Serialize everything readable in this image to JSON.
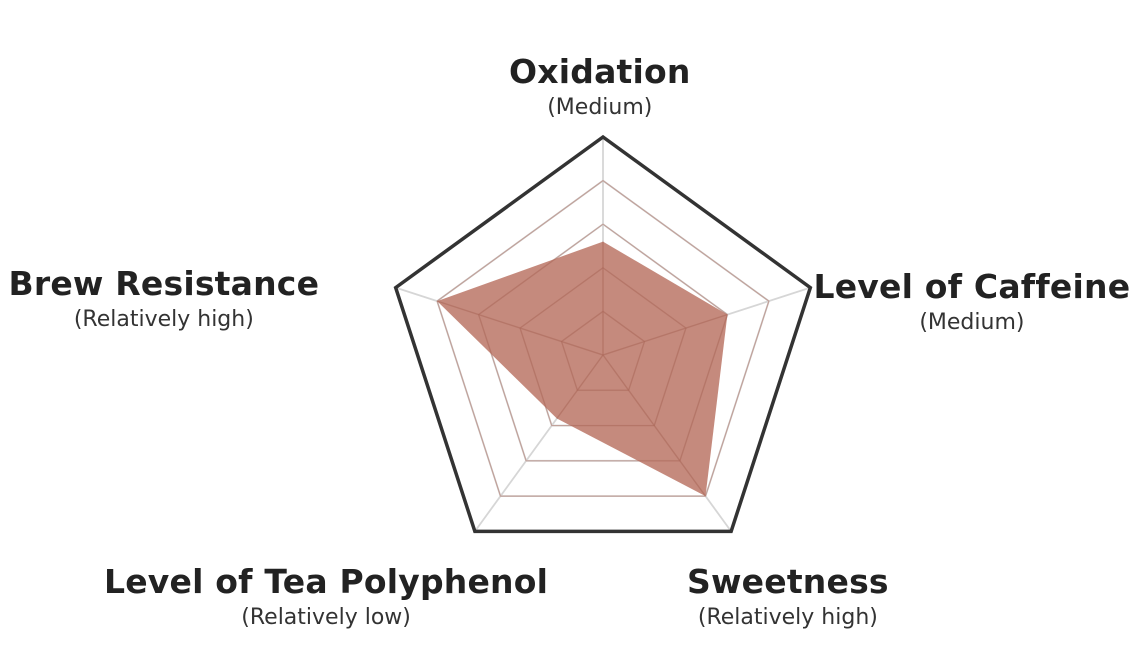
{
  "chart_data": {
    "type": "radar",
    "title": "",
    "levels": 5,
    "max": 5,
    "fill_color": "#bd7a6b",
    "outline_color": "#333333",
    "grid_color": "#d6d6d6",
    "axes": [
      {
        "name": "Oxidation",
        "level": "(Medium)",
        "value": 2.6
      },
      {
        "name": "Level of Caffeine",
        "level": "(Medium)",
        "value": 3.0
      },
      {
        "name": "Sweetness",
        "level": "(Relatively high)",
        "value": 4.0
      },
      {
        "name": "Level of Tea Polyphenol",
        "level": "(Relatively low)",
        "value": 1.8
      },
      {
        "name": "Brew Resistance",
        "level": "(Relatively high)",
        "value": 4.0
      }
    ]
  }
}
